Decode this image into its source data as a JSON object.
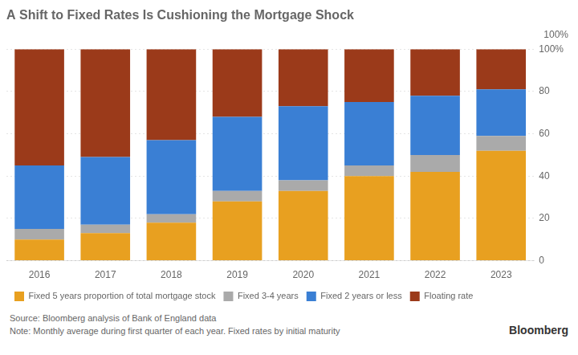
{
  "chart_data": {
    "type": "bar",
    "title": "A Shift to Fixed Rates Is Cushioning the Mortgage Shock",
    "categories": [
      "2016",
      "2017",
      "2018",
      "2019",
      "2020",
      "2021",
      "2022",
      "2023"
    ],
    "series": [
      {
        "name": "Fixed 5 years proportion of total mortgage stock",
        "color": "#E8A020",
        "values": [
          10,
          13,
          18,
          28,
          33,
          40,
          42,
          52
        ]
      },
      {
        "name": "Fixed 3-4 years",
        "color": "#AAAAAA",
        "values": [
          5,
          4,
          4,
          5,
          5,
          5,
          8,
          7
        ]
      },
      {
        "name": "Fixed 2 years or less",
        "color": "#3A7FD4",
        "values": [
          30,
          32,
          35,
          35,
          35,
          30,
          28,
          22
        ]
      },
      {
        "name": "Floating rate",
        "color": "#9B3A1A",
        "values": [
          55,
          51,
          43,
          32,
          27,
          25,
          22,
          19
        ]
      }
    ],
    "stacked": true,
    "ylim": [
      0,
      100
    ],
    "yticks": [
      0,
      20,
      40,
      60,
      80,
      {
        "value": 100,
        "label": "100%"
      }
    ],
    "grid": true,
    "legend": "bottom",
    "annotations": [
      "100%"
    ],
    "source": "Source: Bloomberg analysis of Bank of England data",
    "note": "Note: Monthly average during first quarter of each year. Fixed rates by initial maturity",
    "logo": "Bloomberg"
  }
}
